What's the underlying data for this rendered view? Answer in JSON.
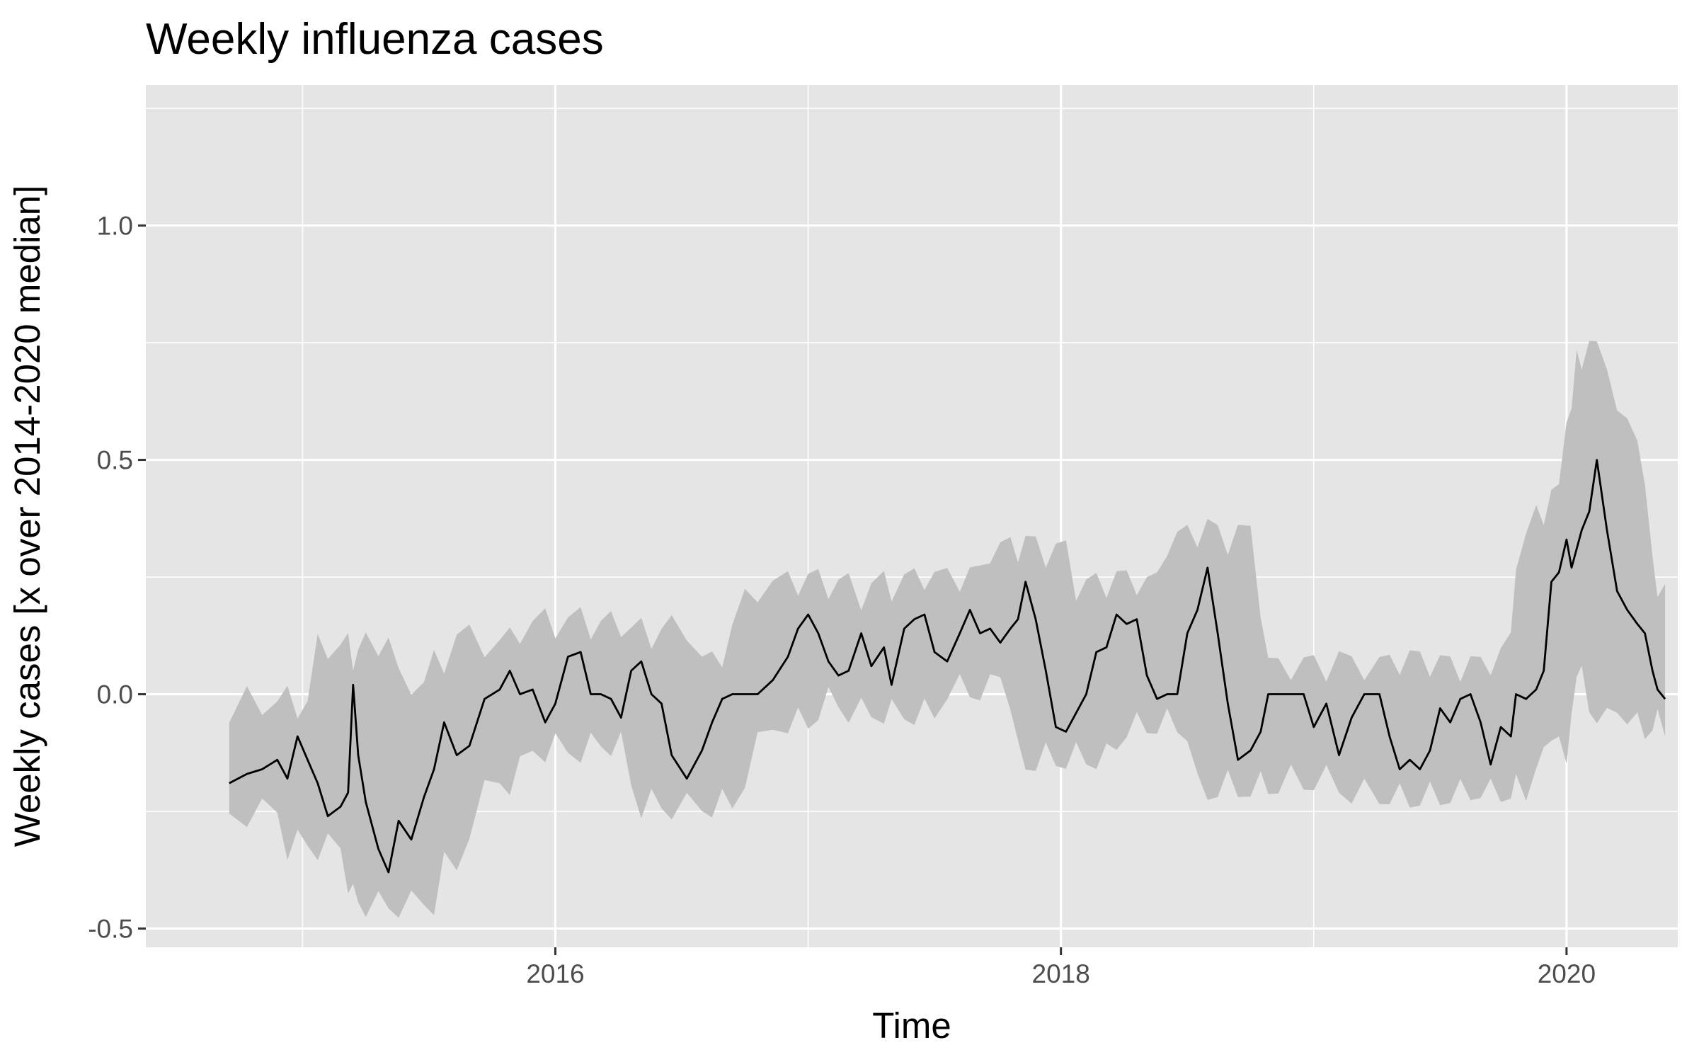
{
  "chart_data": {
    "type": "line",
    "title": "Weekly influenza cases",
    "xlabel": "Time",
    "ylabel": "Weekly cases [x over 2014-2020 median]",
    "xlim": [
      2014.38,
      2020.44
    ],
    "ylim": [
      -0.54,
      1.3
    ],
    "x_ticks": [
      {
        "value": 2016,
        "label": "2016"
      },
      {
        "value": 2018,
        "label": "2018"
      },
      {
        "value": 2020,
        "label": "2020"
      }
    ],
    "y_ticks": [
      {
        "value": -0.5,
        "label": "-0.5"
      },
      {
        "value": 0.0,
        "label": "0.0"
      },
      {
        "value": 0.5,
        "label": "0.5"
      },
      {
        "value": 1.0,
        "label": "1.0"
      }
    ],
    "grid": true,
    "colors": {
      "panel_background": "#e5e5e5",
      "grid": "#ffffff",
      "ribbon": "#bfbfbf",
      "line": "#000000"
    },
    "series": [
      {
        "kind": "line",
        "points": [
          [
            2014.71,
            -0.19
          ],
          [
            2014.78,
            -0.17
          ],
          [
            2014.84,
            -0.16
          ],
          [
            2014.9,
            -0.14
          ],
          [
            2014.94,
            -0.18
          ],
          [
            2014.98,
            -0.09
          ],
          [
            2015.02,
            -0.14
          ],
          [
            2015.06,
            -0.19
          ],
          [
            2015.1,
            -0.26
          ],
          [
            2015.15,
            -0.24
          ],
          [
            2015.18,
            -0.21
          ],
          [
            2015.2,
            0.02
          ],
          [
            2015.22,
            -0.13
          ],
          [
            2015.25,
            -0.23
          ],
          [
            2015.3,
            -0.33
          ],
          [
            2015.34,
            -0.38
          ],
          [
            2015.38,
            -0.27
          ],
          [
            2015.43,
            -0.31
          ],
          [
            2015.48,
            -0.22
          ],
          [
            2015.52,
            -0.16
          ],
          [
            2015.56,
            -0.06
          ],
          [
            2015.61,
            -0.13
          ],
          [
            2015.66,
            -0.11
          ],
          [
            2015.72,
            -0.01
          ],
          [
            2015.78,
            0.01
          ],
          [
            2015.82,
            0.05
          ],
          [
            2015.86,
            0.0
          ],
          [
            2015.91,
            0.01
          ],
          [
            2015.96,
            -0.06
          ],
          [
            2016.0,
            -0.02
          ],
          [
            2016.05,
            0.08
          ],
          [
            2016.1,
            0.09
          ],
          [
            2016.14,
            0.0
          ],
          [
            2016.18,
            0.0
          ],
          [
            2016.22,
            -0.01
          ],
          [
            2016.26,
            -0.05
          ],
          [
            2016.3,
            0.05
          ],
          [
            2016.34,
            0.07
          ],
          [
            2016.38,
            0.0
          ],
          [
            2016.42,
            -0.02
          ],
          [
            2016.46,
            -0.13
          ],
          [
            2016.52,
            -0.18
          ],
          [
            2016.58,
            -0.12
          ],
          [
            2016.62,
            -0.06
          ],
          [
            2016.66,
            -0.01
          ],
          [
            2016.7,
            0.0
          ],
          [
            2016.75,
            0.0
          ],
          [
            2016.8,
            0.0
          ],
          [
            2016.86,
            0.03
          ],
          [
            2016.92,
            0.08
          ],
          [
            2016.96,
            0.14
          ],
          [
            2017.0,
            0.17
          ],
          [
            2017.04,
            0.13
          ],
          [
            2017.08,
            0.07
          ],
          [
            2017.12,
            0.04
          ],
          [
            2017.16,
            0.05
          ],
          [
            2017.21,
            0.13
          ],
          [
            2017.25,
            0.06
          ],
          [
            2017.3,
            0.1
          ],
          [
            2017.33,
            0.02
          ],
          [
            2017.38,
            0.14
          ],
          [
            2017.42,
            0.16
          ],
          [
            2017.46,
            0.17
          ],
          [
            2017.5,
            0.09
          ],
          [
            2017.55,
            0.07
          ],
          [
            2017.6,
            0.13
          ],
          [
            2017.64,
            0.18
          ],
          [
            2017.68,
            0.13
          ],
          [
            2017.72,
            0.14
          ],
          [
            2017.76,
            0.11
          ],
          [
            2017.8,
            0.14
          ],
          [
            2017.83,
            0.16
          ],
          [
            2017.86,
            0.24
          ],
          [
            2017.9,
            0.16
          ],
          [
            2017.94,
            0.05
          ],
          [
            2017.98,
            -0.07
          ],
          [
            2018.02,
            -0.08
          ],
          [
            2018.06,
            -0.04
          ],
          [
            2018.1,
            0.0
          ],
          [
            2018.14,
            0.09
          ],
          [
            2018.18,
            0.1
          ],
          [
            2018.22,
            0.17
          ],
          [
            2018.26,
            0.15
          ],
          [
            2018.3,
            0.16
          ],
          [
            2018.34,
            0.04
          ],
          [
            2018.38,
            -0.01
          ],
          [
            2018.42,
            0.0
          ],
          [
            2018.46,
            0.0
          ],
          [
            2018.5,
            0.13
          ],
          [
            2018.54,
            0.18
          ],
          [
            2018.58,
            0.27
          ],
          [
            2018.62,
            0.13
          ],
          [
            2018.66,
            -0.02
          ],
          [
            2018.7,
            -0.14
          ],
          [
            2018.75,
            -0.12
          ],
          [
            2018.79,
            -0.08
          ],
          [
            2018.82,
            0.0
          ],
          [
            2018.86,
            0.0
          ],
          [
            2018.91,
            0.0
          ],
          [
            2018.96,
            0.0
          ],
          [
            2019.0,
            -0.07
          ],
          [
            2019.05,
            -0.02
          ],
          [
            2019.1,
            -0.13
          ],
          [
            2019.15,
            -0.05
          ],
          [
            2019.2,
            0.0
          ],
          [
            2019.26,
            0.0
          ],
          [
            2019.3,
            -0.09
          ],
          [
            2019.34,
            -0.16
          ],
          [
            2019.38,
            -0.14
          ],
          [
            2019.42,
            -0.16
          ],
          [
            2019.46,
            -0.12
          ],
          [
            2019.5,
            -0.03
          ],
          [
            2019.54,
            -0.06
          ],
          [
            2019.58,
            -0.01
          ],
          [
            2019.62,
            0.0
          ],
          [
            2019.66,
            -0.06
          ],
          [
            2019.7,
            -0.15
          ],
          [
            2019.74,
            -0.07
          ],
          [
            2019.78,
            -0.09
          ],
          [
            2019.8,
            0.0
          ],
          [
            2019.84,
            -0.01
          ],
          [
            2019.88,
            0.01
          ],
          [
            2019.91,
            0.05
          ],
          [
            2019.94,
            0.24
          ],
          [
            2019.97,
            0.26
          ],
          [
            2020.0,
            0.33
          ],
          [
            2020.02,
            0.27
          ],
          [
            2020.04,
            0.31
          ],
          [
            2020.06,
            0.35
          ],
          [
            2020.09,
            0.39
          ],
          [
            2020.12,
            0.5
          ],
          [
            2020.16,
            0.35
          ],
          [
            2020.2,
            0.22
          ],
          [
            2020.24,
            0.18
          ],
          [
            2020.28,
            0.15
          ],
          [
            2020.31,
            0.13
          ],
          [
            2020.34,
            0.05
          ],
          [
            2020.36,
            0.01
          ],
          [
            2020.39,
            -0.01
          ]
        ]
      }
    ]
  }
}
